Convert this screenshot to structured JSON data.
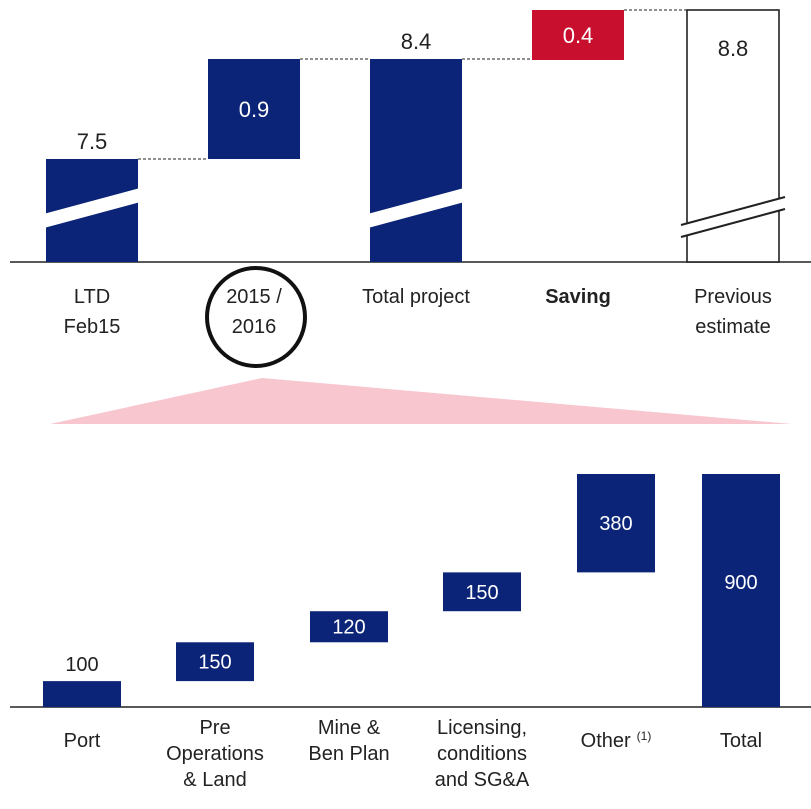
{
  "colors": {
    "navy": "#0b2478",
    "saving_red": "#c8102e",
    "wedge_pink": "#f8c6cf",
    "axis": "#222222",
    "white": "#ffffff"
  },
  "chart_data": [
    {
      "type": "bar",
      "subtype": "waterfall",
      "axis_break": true,
      "categories": [
        "LTD\nFeb15",
        "2015 /\n2016",
        "Total project",
        "Saving",
        "Previous\nestimate"
      ],
      "values": [
        7.5,
        0.9,
        8.4,
        0.4,
        8.8
      ],
      "data_labels": [
        "7.5",
        "0.9",
        "8.4",
        "0.4",
        "8.8"
      ],
      "bar_kinds": [
        "total",
        "increment",
        "total",
        "increment",
        "total"
      ],
      "colors": [
        "navy",
        "navy",
        "navy",
        "saving_red",
        "outline"
      ],
      "bold_category": "Saving",
      "highlighted_category": "2015 /\n2016"
    },
    {
      "type": "bar",
      "subtype": "waterfall",
      "categories": [
        "Port",
        "Pre\nOperations\n& Land",
        "Mine &\nBen Plan",
        "Licensing,\nconditions\nand SG&A",
        "Other",
        "Total"
      ],
      "category_superscripts": [
        "",
        "",
        "",
        "",
        "(1)",
        ""
      ],
      "values": [
        100,
        150,
        120,
        150,
        380,
        900
      ],
      "data_labels": [
        "100",
        "150",
        "120",
        "150",
        "380",
        "900"
      ],
      "bar_kinds": [
        "increment",
        "increment",
        "increment",
        "increment",
        "increment",
        "total"
      ],
      "ylim": [
        0,
        900
      ]
    }
  ]
}
